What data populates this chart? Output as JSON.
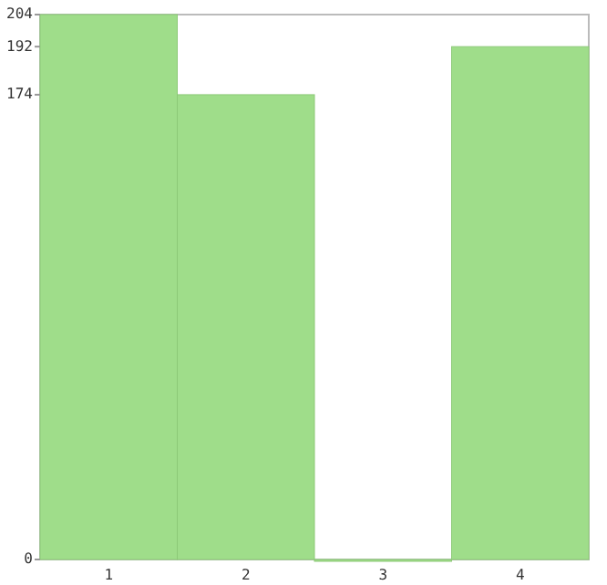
{
  "chart_data": {
    "type": "bar",
    "categories": [
      "1",
      "2",
      "3",
      "4"
    ],
    "values": [
      204,
      174,
      0,
      192
    ],
    "color": "#9fdd8a",
    "ylim": [
      0,
      204
    ],
    "yticks": [
      0,
      174,
      192,
      204
    ],
    "grid": false
  }
}
